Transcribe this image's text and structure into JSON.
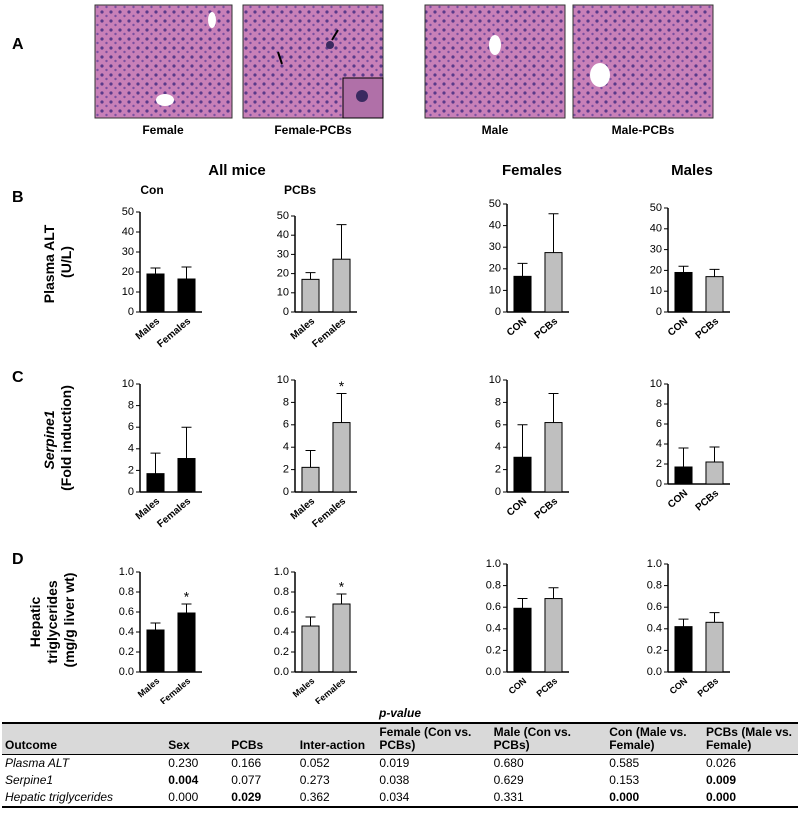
{
  "panel_a": {
    "label": "A",
    "captions": [
      "Female",
      "Female-PCBs",
      "Male",
      "Male-PCBs"
    ]
  },
  "column_headers": {
    "all_mice": "All mice",
    "con": "Con",
    "pcbs": "PCBs",
    "females": "Females",
    "males": "Males"
  },
  "row_labels": [
    {
      "label": "B",
      "lines": [
        "Plasma ALT",
        "(U/L)"
      ]
    },
    {
      "label": "C",
      "lines": [
        "Serpine1",
        "(Fold induction)"
      ]
    },
    {
      "label": "D",
      "lines": [
        "Hepatic",
        "triglycerides",
        "(mg/g liver wt)"
      ]
    }
  ],
  "chart_data": [
    {
      "type": "bar",
      "categories": [
        "Males",
        "Females"
      ],
      "values": [
        19,
        16.5
      ],
      "errors": [
        3,
        6
      ],
      "colors": [
        "#000000",
        "#000000"
      ],
      "ylim": [
        0,
        50
      ],
      "yticks": [
        0,
        10,
        20,
        30,
        40,
        50
      ]
    },
    {
      "type": "bar",
      "categories": [
        "Males",
        "Females"
      ],
      "values": [
        17,
        27.5
      ],
      "errors": [
        3.5,
        18
      ],
      "colors": [
        "#bfbfbf",
        "#bfbfbf"
      ],
      "ylim": [
        0,
        50
      ],
      "yticks": [
        0,
        10,
        20,
        30,
        40,
        50
      ]
    },
    {
      "type": "bar",
      "categories": [
        "CON",
        "PCBs"
      ],
      "values": [
        16.5,
        27.5
      ],
      "errors": [
        6,
        18
      ],
      "colors": [
        "#000000",
        "#bfbfbf"
      ],
      "ylim": [
        0,
        50
      ],
      "yticks": [
        0,
        10,
        20,
        30,
        40,
        50
      ]
    },
    {
      "type": "bar",
      "categories": [
        "CON",
        "PCBs"
      ],
      "values": [
        19,
        17
      ],
      "errors": [
        3,
        3.5
      ],
      "colors": [
        "#000000",
        "#bfbfbf"
      ],
      "ylim": [
        0,
        50
      ],
      "yticks": [
        0,
        10,
        20,
        30,
        40,
        50
      ]
    },
    {
      "type": "bar",
      "categories": [
        "Males",
        "Females"
      ],
      "values": [
        1.7,
        3.1
      ],
      "errors": [
        1.9,
        2.9
      ],
      "colors": [
        "#000000",
        "#000000"
      ],
      "ylim": [
        0,
        10
      ],
      "yticks": [
        0,
        2,
        4,
        6,
        8,
        10
      ]
    },
    {
      "type": "bar",
      "categories": [
        "Males",
        "Females"
      ],
      "values": [
        2.2,
        6.2
      ],
      "errors": [
        1.5,
        2.6
      ],
      "colors": [
        "#bfbfbf",
        "#bfbfbf"
      ],
      "ylim": [
        0,
        10
      ],
      "yticks": [
        0,
        2,
        4,
        6,
        8,
        10
      ],
      "significance": [
        null,
        "*"
      ]
    },
    {
      "type": "bar",
      "categories": [
        "CON",
        "PCBs"
      ],
      "values": [
        3.1,
        6.2
      ],
      "errors": [
        2.9,
        2.6
      ],
      "colors": [
        "#000000",
        "#bfbfbf"
      ],
      "ylim": [
        0,
        10
      ],
      "yticks": [
        0,
        2,
        4,
        6,
        8,
        10
      ]
    },
    {
      "type": "bar",
      "categories": [
        "CON",
        "PCBs"
      ],
      "values": [
        1.7,
        2.2
      ],
      "errors": [
        1.9,
        1.5
      ],
      "colors": [
        "#000000",
        "#bfbfbf"
      ],
      "ylim": [
        0,
        10
      ],
      "yticks": [
        0,
        2,
        4,
        6,
        8,
        10
      ]
    },
    {
      "type": "bar",
      "categories": [
        "Males",
        "Females"
      ],
      "values": [
        0.42,
        0.59
      ],
      "errors": [
        0.07,
        0.09
      ],
      "colors": [
        "#000000",
        "#000000"
      ],
      "ylim": [
        0,
        1
      ],
      "yticks": [
        {
          "value": 0,
          "label": "0.0"
        },
        0.2,
        0.4,
        0.6,
        0.8,
        {
          "value": 1,
          "label": "1.0"
        }
      ],
      "significance": [
        null,
        "*"
      ]
    },
    {
      "type": "bar",
      "categories": [
        "Males",
        "Females"
      ],
      "values": [
        0.46,
        0.68
      ],
      "errors": [
        0.09,
        0.1
      ],
      "colors": [
        "#bfbfbf",
        "#bfbfbf"
      ],
      "ylim": [
        0,
        1
      ],
      "yticks": [
        {
          "value": 0,
          "label": "0.0"
        },
        0.2,
        0.4,
        0.6,
        0.8,
        {
          "value": 1,
          "label": "1.0"
        }
      ],
      "significance": [
        null,
        "*"
      ]
    },
    {
      "type": "bar",
      "categories": [
        "CON",
        "PCBs"
      ],
      "values": [
        0.59,
        0.68
      ],
      "errors": [
        0.09,
        0.1
      ],
      "colors": [
        "#000000",
        "#bfbfbf"
      ],
      "ylim": [
        0,
        1
      ],
      "yticks": [
        {
          "value": 0,
          "label": "0.0"
        },
        0.2,
        0.4,
        0.6,
        0.8,
        {
          "value": 1,
          "label": "1.0"
        }
      ]
    },
    {
      "type": "bar",
      "categories": [
        "CON",
        "PCBs"
      ],
      "values": [
        0.42,
        0.46
      ],
      "errors": [
        0.07,
        0.09
      ],
      "colors": [
        "#000000",
        "#bfbfbf"
      ],
      "ylim": [
        0,
        1
      ],
      "yticks": [
        {
          "value": 0,
          "label": "0.0"
        },
        0.2,
        0.4,
        0.6,
        0.8,
        {
          "value": 1,
          "label": "1.0"
        }
      ]
    }
  ],
  "table": {
    "title": "p-value",
    "headers": [
      "Outcome",
      "Sex",
      "PCBs",
      "Inter-action",
      "Female (Con vs. PCBs)",
      "Male (Con vs. PCBs)",
      "Con (Male vs. Female)",
      "PCBs (Male vs. Female)"
    ],
    "rows": [
      {
        "cells": [
          "Plasma ALT",
          "0.230",
          "0.166",
          "0.052",
          "0.019",
          "0.680",
          "0.585",
          "0.026"
        ],
        "bold": []
      },
      {
        "cells": [
          "Serpine1",
          "0.004",
          "0.077",
          "0.273",
          "0.038",
          "0.629",
          "0.153",
          "0.009"
        ],
        "bold": [
          1,
          7
        ]
      },
      {
        "cells": [
          "Hepatic triglycerides",
          "0.000",
          "0.029",
          "0.362",
          "0.034",
          "0.331",
          "0.000",
          "0.000"
        ],
        "bold": [
          2,
          6,
          7
        ]
      }
    ]
  }
}
